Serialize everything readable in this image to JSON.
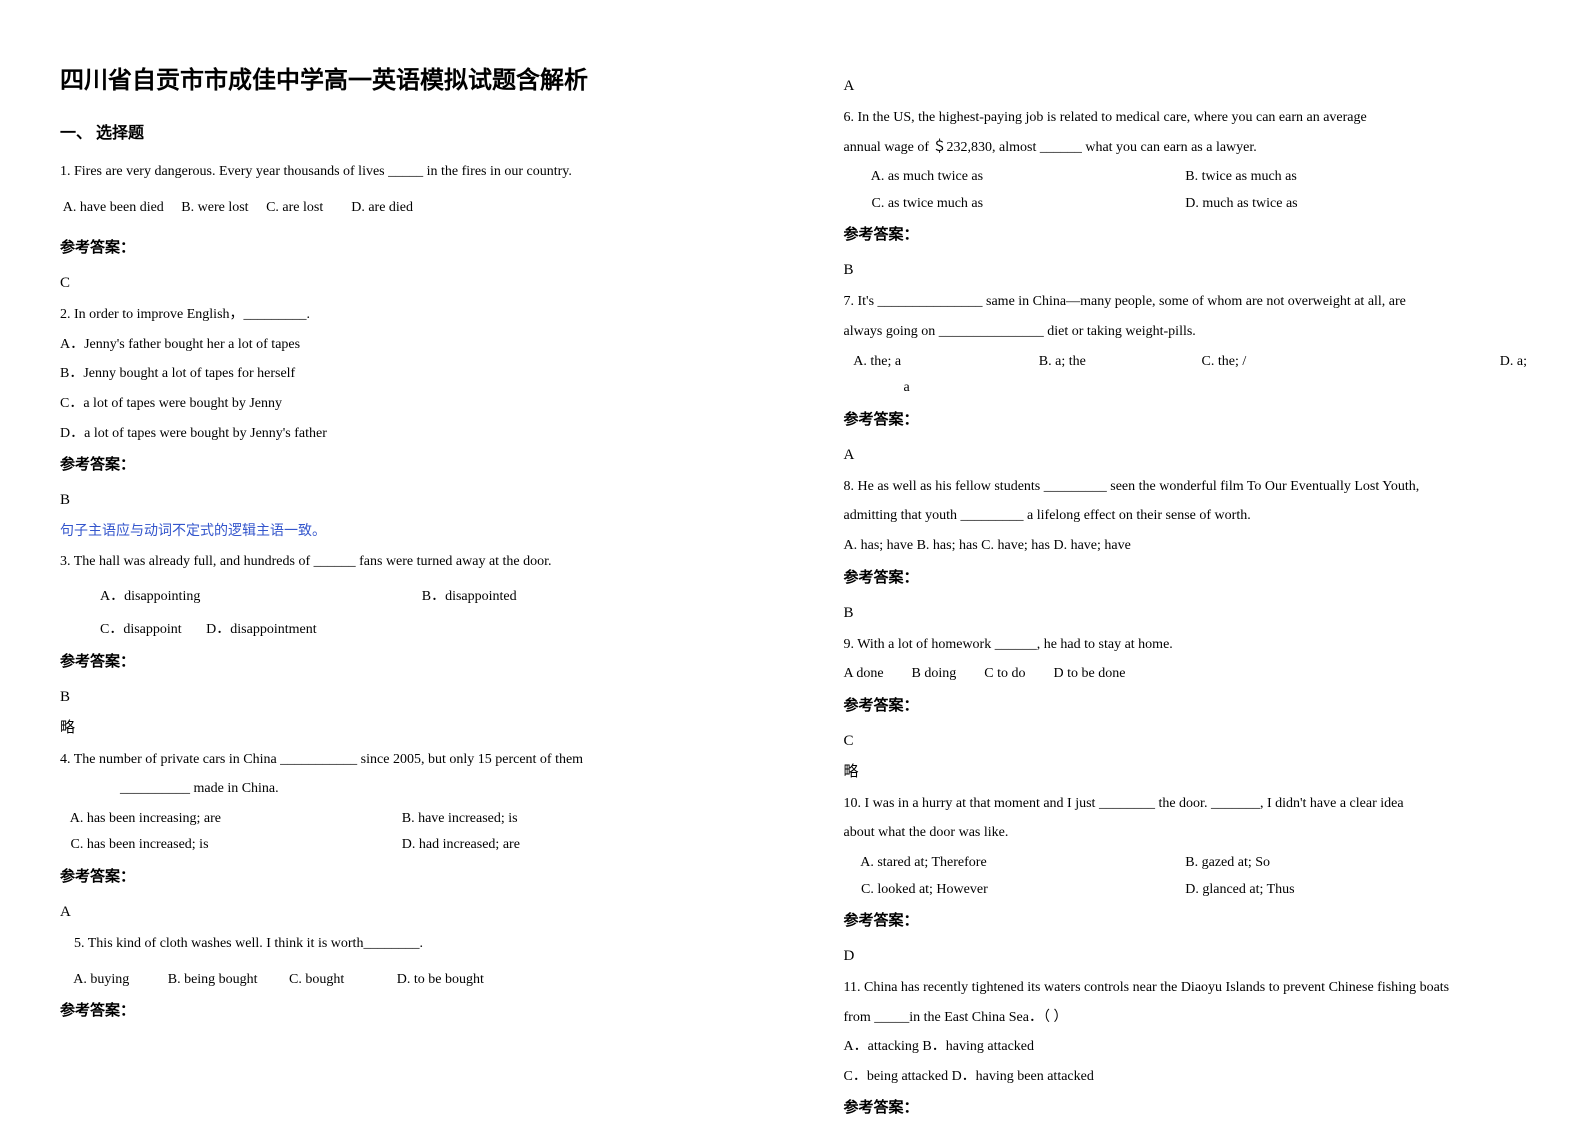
{
  "title": "四川省自贡市市成佳中学高一英语模拟试题含解析",
  "section_heading": "一、 选择题",
  "answer_label": "参考答案：",
  "brief": "略",
  "col_left": {
    "q1": {
      "text": "1. Fires are very dangerous. Every year thousands of lives _____ in the fires in our country.",
      "options": " A. have been died     B. were lost     C. are lost        D. are died",
      "answer": "C"
    },
    "q2": {
      "text": "2. In order to improve English，_________.",
      "optA": "A．Jenny's father bought her a lot of tapes",
      "optB": "B．Jenny bought a lot of tapes for herself",
      "optC": "C．a lot of tapes were bought by Jenny",
      "optD": "D．a lot of tapes were bought by Jenny's father",
      "answer": "B",
      "explain": "句子主语应与动词不定式的逻辑主语一致。"
    },
    "q3": {
      "text": "3. The hall was already full, and hundreds of ______ fans were turned away at the door.",
      "optA": "A．disappointing",
      "optB": "B．disappointed",
      "optC": "C．disappoint",
      "optD": "D．disappointment",
      "answer": "B"
    },
    "q4": {
      "line1": "4. The number of private cars in China ___________ since 2005, but only 15 percent of them",
      "line2": "__________ made in China.",
      "optA": "   A. has been increasing; are",
      "optB": "B. have increased; is",
      "optC": "   C. has been increased; is",
      "optD": "D. had increased; are",
      "answer": "A"
    },
    "q5": {
      "text": "    5. This kind of cloth washes well. I think it is worth________.",
      "options": "    A. buying           B. being bought         C. bought               D. to be bought"
    }
  },
  "col_right": {
    "a5": "A",
    "q6": {
      "line1": "6. In the US, the highest-paying job is related to medical care, where you can earn an average",
      "line2": "annual wage of ＄232,830, almost ______ what you can earn as a lawyer.",
      "optA": "        A. as much twice as",
      "optB": "B. twice as much as",
      "optC": "        C. as twice much as",
      "optD": "D. much as twice as",
      "answer": "B"
    },
    "q7": {
      "line1": "7. It's _______________ same in China—many people, some of whom are not overweight at all, are",
      "line2": "always going on _______________ diet or taking weight-pills.",
      "optA": "   A. the; a",
      "optB": "B. a; the",
      "optC": "C. the; /",
      "optD": "D. a;",
      "optD2": "a",
      "answer": "A"
    },
    "q8": {
      "line1": "8. He as well as his fellow students _________ seen the wonderful film To Our Eventually Lost Youth,",
      "line2": "admitting that youth _________ a lifelong effect on their sense of worth.",
      "options": "A. has; have   B. has; has        C. have; has D. have; have",
      "answer": "B"
    },
    "q9": {
      "text": "9. With a lot of homework ______, he had to stay at home.",
      "options": "A done        B doing        C to do        D to be done",
      "answer": "C"
    },
    "q10": {
      "line1": "10. I was in a hurry at that moment and I just ________ the door. _______, I didn't have a clear idea",
      "line2": "about what the door was like.",
      "optA": "     A. stared at; Therefore",
      "optB": "B. gazed at; So",
      "optC": "     C. looked at; However",
      "optD": "D. glanced at; Thus",
      "answer": "D"
    },
    "q11": {
      "line1": "11. China has recently tightened its waters controls near the Diaoyu Islands to prevent Chinese fishing boats",
      "line2": "from _____in the East China Sea．（ ）",
      "optAB": "A．attacking        B．having attacked",
      "optCD": "C．being attacked      D．having been attacked"
    }
  }
}
